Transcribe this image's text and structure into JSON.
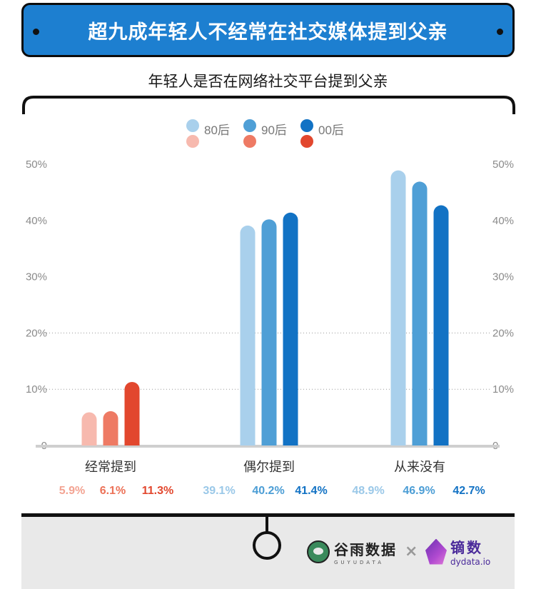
{
  "banner": {
    "title": "超九成年轻人不经常在社交媒体提到父亲"
  },
  "chart_data": {
    "type": "bar",
    "title": "年轻人是否在网络社交平台提到父亲",
    "categories": [
      "经常提到",
      "偶尔提到",
      "从来没有"
    ],
    "series": [
      {
        "name": "80后",
        "values": [
          5.9,
          39.1,
          48.9
        ]
      },
      {
        "name": "90后",
        "values": [
          6.1,
          40.2,
          46.9
        ]
      },
      {
        "name": "00后",
        "values": [
          11.3,
          41.4,
          42.7
        ]
      }
    ],
    "value_labels": [
      [
        "5.9%",
        "6.1%",
        "11.3%"
      ],
      [
        "39.1%",
        "40.2%",
        "41.4%"
      ],
      [
        "48.9%",
        "46.9%",
        "42.7%"
      ]
    ],
    "yticks": [
      "0",
      "10%",
      "20%",
      "30%",
      "40%",
      "50%"
    ],
    "ylim": [
      0,
      50
    ],
    "grid": true,
    "legend_position": "top",
    "colors": {
      "red_group": [
        "#f7b9ae",
        "#ee7a64",
        "#e2472e"
      ],
      "blue_group": [
        "#a9d0ec",
        "#4f9fd6",
        "#1272c4"
      ],
      "label_red": [
        "#f3a392",
        "#ec7258",
        "#e2472e"
      ],
      "label_blue": [
        "#9ac8e8",
        "#4b9dd5",
        "#1272c4"
      ]
    }
  },
  "footer": {
    "brand1_name": "谷雨数据",
    "brand1_sub": "GUYUDATA",
    "cross": "×",
    "brand2_name": "镝数",
    "brand2_sub": "dydata.io"
  }
}
